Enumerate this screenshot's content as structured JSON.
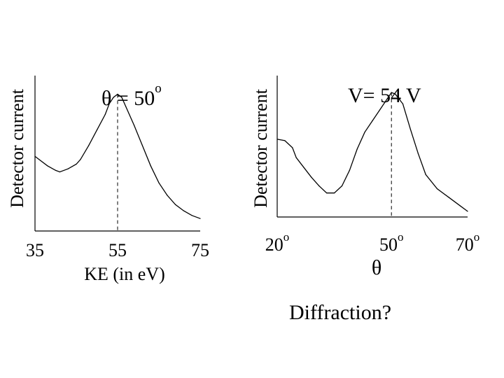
{
  "chart_data": [
    {
      "type": "line",
      "title": "θ = 50",
      "title_sup": "o",
      "ylabel": "Detector current",
      "xlabel": "KE (in eV)",
      "xlim": [
        35,
        75
      ],
      "xticks": [
        "35",
        "55",
        "75"
      ],
      "grid": false,
      "marker_x": 55,
      "series": [
        {
          "x": [
            35,
            38,
            40,
            41,
            43,
            45,
            46,
            48,
            50,
            52,
            53,
            54,
            55,
            56,
            57,
            59,
            61,
            63,
            65,
            67,
            69,
            71,
            73,
            75
          ],
          "y": [
            0.48,
            0.42,
            0.39,
            0.38,
            0.4,
            0.43,
            0.46,
            0.55,
            0.65,
            0.75,
            0.82,
            0.86,
            0.88,
            0.86,
            0.8,
            0.68,
            0.55,
            0.42,
            0.31,
            0.23,
            0.17,
            0.13,
            0.1,
            0.08
          ]
        }
      ]
    },
    {
      "type": "line",
      "title": "V= 54 V",
      "ylabel": "Detector current",
      "xlabel": "θ",
      "xlim": [
        20,
        70
      ],
      "xticks": [
        {
          "label": "20",
          "sup": "o"
        },
        {
          "label": "50",
          "sup": "o"
        },
        {
          "label": "70",
          "sup": "o"
        }
      ],
      "grid": false,
      "marker_x": 50,
      "series": [
        {
          "x": [
            20,
            22,
            24,
            25,
            27,
            29,
            31,
            33,
            35,
            37,
            39,
            41,
            43,
            45,
            47,
            49,
            50,
            51,
            53,
            55,
            57,
            59,
            62,
            65,
            68,
            70
          ],
          "y": [
            0.55,
            0.54,
            0.49,
            0.42,
            0.35,
            0.28,
            0.22,
            0.17,
            0.17,
            0.22,
            0.33,
            0.48,
            0.6,
            0.68,
            0.76,
            0.84,
            0.88,
            0.87,
            0.8,
            0.62,
            0.45,
            0.3,
            0.2,
            0.14,
            0.08,
            0.04
          ]
        }
      ]
    }
  ],
  "caption": "Diffraction?"
}
